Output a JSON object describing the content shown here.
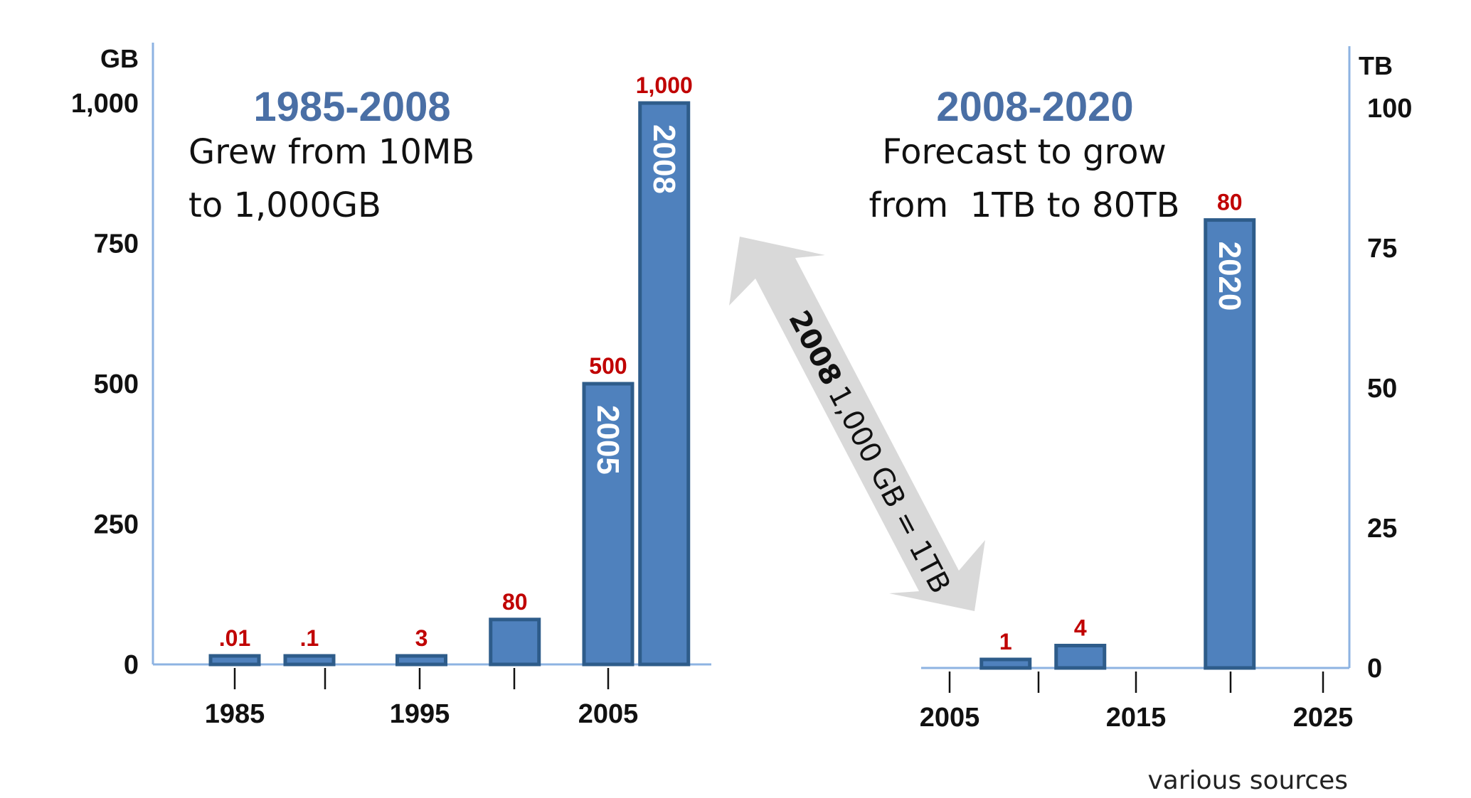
{
  "chart_data": [
    {
      "type": "bar",
      "title": "1985-2008",
      "subtitle": [
        "Grew from 10MB",
        "to 1,000GB"
      ],
      "ylabel": "GB",
      "ylim": [
        0,
        1000
      ],
      "yticks": [
        "0",
        "250",
        "500",
        "750",
        "1,000"
      ],
      "xlim": [
        1982,
        2012
      ],
      "xticks": [
        "1985",
        "1995",
        "2005"
      ],
      "grid": false,
      "bars": [
        {
          "year": 1985,
          "value": 0.01,
          "label": ".01",
          "inner_label": ""
        },
        {
          "year": 1989,
          "value": 0.1,
          "label": ".1",
          "inner_label": ""
        },
        {
          "year": 1995,
          "value": 3,
          "label": "3",
          "inner_label": ""
        },
        {
          "year": 2000,
          "value": 80,
          "label": "80",
          "inner_label": ""
        },
        {
          "year": 2005,
          "value": 500,
          "label": "500",
          "inner_label": "2005"
        },
        {
          "year": 2008,
          "value": 1000,
          "label": "1,000",
          "inner_label": "2008"
        }
      ]
    },
    {
      "type": "bar",
      "title": "2008-2020",
      "subtitle": [
        "Forecast to grow",
        "from  1TB to 80TB"
      ],
      "ylabel": "TB",
      "ylim": [
        0,
        100
      ],
      "yticks": [
        "0",
        "25",
        "50",
        "75",
        "100"
      ],
      "xlim": [
        2005,
        2025
      ],
      "xticks": [
        "2005",
        "2015",
        "2025"
      ],
      "grid": false,
      "bars": [
        {
          "year": 2008,
          "value": 1,
          "label": "1",
          "inner_label": ""
        },
        {
          "year": 2012,
          "value": 4,
          "label": "4",
          "inner_label": ""
        },
        {
          "year": 2020,
          "value": 80,
          "label": "80",
          "inner_label": "2020"
        }
      ]
    }
  ],
  "annotation": {
    "arrow_text": [
      "2008",
      "1,000 GB = 1TB"
    ],
    "source": "various sources"
  },
  "colors": {
    "bar_fill": "#4f81bd",
    "bar_stroke": "#2e5c8a",
    "axis": "#8db3e2",
    "value_label": "#c00000",
    "title": "#4a6fa5",
    "arrow": "#d9d9d9"
  }
}
